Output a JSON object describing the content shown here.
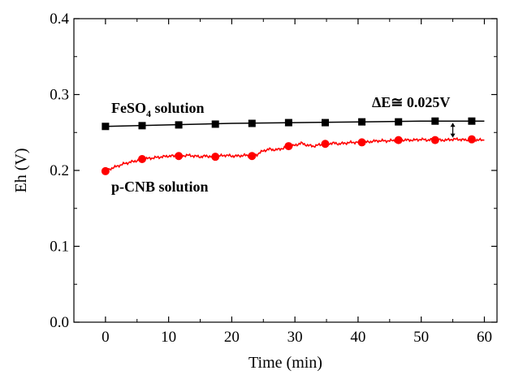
{
  "chart_data": {
    "type": "line",
    "title": "",
    "xlabel": "Time (min)",
    "ylabel": "Eh (V)",
    "xlim": [
      -5,
      62
    ],
    "ylim": [
      0.0,
      0.4
    ],
    "x_ticks": [
      0,
      10,
      20,
      30,
      40,
      50,
      60
    ],
    "x_tick_labels": [
      "0",
      "10",
      "20",
      "30",
      "40",
      "50",
      "60"
    ],
    "y_ticks": [
      0.0,
      0.1,
      0.2,
      0.3,
      0.4
    ],
    "y_tick_labels": [
      "0.0",
      "0.1",
      "0.2",
      "0.3",
      "0.4"
    ],
    "grid": false,
    "series": [
      {
        "name": "FeSO4 solution",
        "marker": "square",
        "color": "#000000",
        "x": [
          0,
          5.8,
          11.6,
          17.4,
          23.2,
          29.0,
          34.8,
          40.6,
          46.4,
          52.2,
          58.0
        ],
        "values": [
          0.258,
          0.259,
          0.26,
          0.261,
          0.262,
          0.263,
          0.263,
          0.264,
          0.264,
          0.265,
          0.265
        ],
        "line_x": [
          0,
          10,
          20,
          30,
          40,
          50,
          60
        ],
        "line_values": [
          0.258,
          0.26,
          0.262,
          0.263,
          0.264,
          0.265,
          0.265
        ]
      },
      {
        "name": "p-CNB solution",
        "marker": "circle",
        "color": "#ff0000",
        "x": [
          0,
          5.8,
          11.6,
          17.4,
          23.2,
          29.0,
          34.8,
          40.6,
          46.4,
          52.2,
          58.0
        ],
        "values": [
          0.199,
          0.215,
          0.219,
          0.218,
          0.219,
          0.232,
          0.235,
          0.237,
          0.24,
          0.24,
          0.241
        ],
        "line_x": [
          0,
          1,
          2,
          3,
          4,
          5,
          6,
          7,
          8,
          9,
          10,
          11,
          12,
          13,
          14,
          15,
          16,
          17,
          18,
          19,
          20,
          21,
          22,
          23,
          24,
          25,
          26,
          27,
          28,
          29,
          30,
          31,
          32,
          33,
          34,
          35,
          36,
          37,
          38,
          39,
          40,
          41,
          42,
          43,
          44,
          45,
          46,
          47,
          48,
          49,
          50,
          51,
          52,
          53,
          54,
          55,
          56,
          57,
          58,
          59,
          60
        ],
        "line_values": [
          0.199,
          0.203,
          0.206,
          0.209,
          0.211,
          0.213,
          0.215,
          0.216,
          0.217,
          0.218,
          0.219,
          0.219,
          0.219,
          0.22,
          0.219,
          0.218,
          0.219,
          0.218,
          0.219,
          0.22,
          0.219,
          0.219,
          0.22,
          0.219,
          0.221,
          0.226,
          0.228,
          0.227,
          0.229,
          0.231,
          0.233,
          0.236,
          0.233,
          0.232,
          0.234,
          0.235,
          0.236,
          0.235,
          0.236,
          0.237,
          0.237,
          0.237,
          0.238,
          0.239,
          0.239,
          0.239,
          0.24,
          0.24,
          0.24,
          0.24,
          0.241,
          0.24,
          0.241,
          0.24,
          0.24,
          0.241,
          0.241,
          0.24,
          0.241,
          0.24,
          0.24
        ]
      }
    ],
    "annotations": [
      {
        "name": "fe-label",
        "text_main": "FeSO",
        "text_sub": "4",
        "text_tail": " solution"
      },
      {
        "name": "cnb-label",
        "text": "p-CNB solution"
      },
      {
        "name": "delta-label",
        "text": "ΔE≅ 0.025V"
      }
    ],
    "delta_arrow": {
      "x": 55,
      "y_top": 0.265,
      "y_bottom": 0.241
    }
  }
}
